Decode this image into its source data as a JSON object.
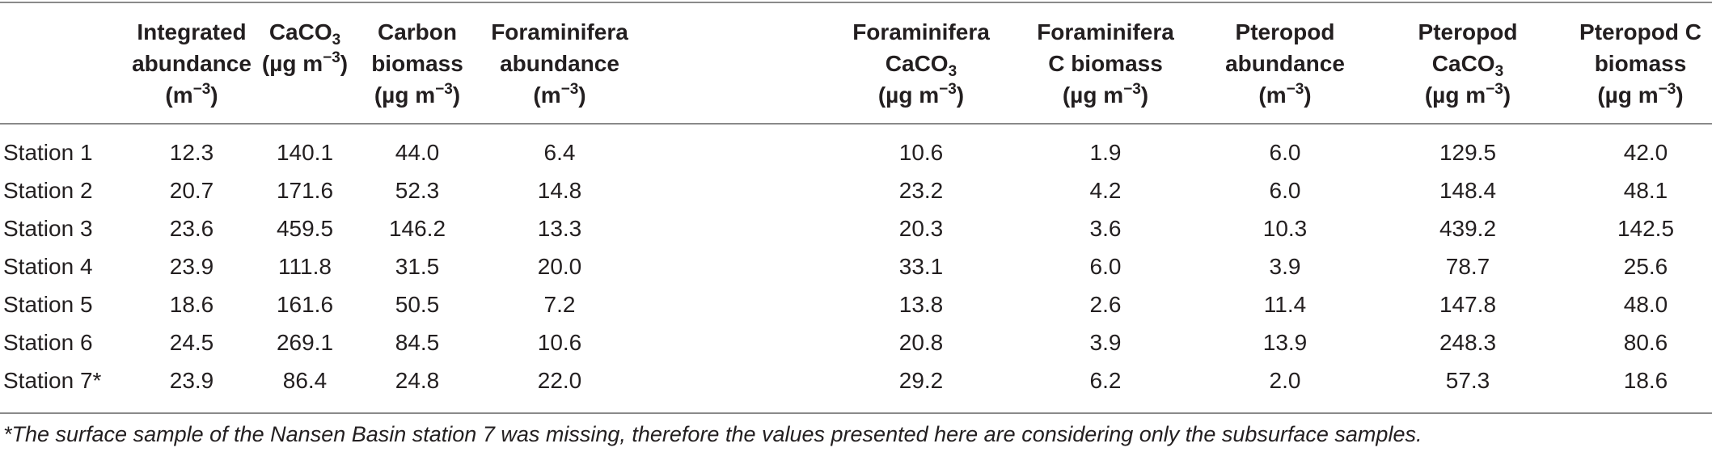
{
  "table": {
    "headers": [
      {
        "line1": "Integrated",
        "line2": "abundance",
        "line3_pre": "(m",
        "line3_sup": "−3",
        "line3_post": ")"
      },
      {
        "line1_pre": "CaCO",
        "line1_sub": "3",
        "line2_pre": "(µg m",
        "line2_sup": "−3",
        "line2_post": ")"
      },
      {
        "line1": "Carbon",
        "line2": "biomass",
        "line3_pre": "(µg m",
        "line3_sup": "−3",
        "line3_post": ")"
      },
      {
        "line1": "Foraminifera",
        "line2": "abundance",
        "line3_pre": "(m",
        "line3_sup": "−3",
        "line3_post": ")"
      },
      {
        "line1": "Foraminifera",
        "line2_pre": "CaCO",
        "line2_sub": "3",
        "line3_pre": "(µg m",
        "line3_sup": "−3",
        "line3_post": ")"
      },
      {
        "line1": "Foraminifera",
        "line2": "C biomass",
        "line3_pre": "(µg m",
        "line3_sup": "−3",
        "line3_post": ")"
      },
      {
        "line1": "Pteropod",
        "line2": "abundance",
        "line3_pre": "(m",
        "line3_sup": "−3",
        "line3_post": ")"
      },
      {
        "line1": "Pteropod",
        "line2_pre": "CaCO",
        "line2_sub": "3",
        "line3_pre": "(µg m",
        "line3_sup": "−3",
        "line3_post": ")"
      },
      {
        "line1": "Pteropod C",
        "line2": "biomass",
        "line3_pre": "(µg m",
        "line3_sup": "−3",
        "line3_post": ")"
      }
    ],
    "rows": [
      {
        "label": "Station 1",
        "values": [
          "12.3",
          "140.1",
          "44.0",
          "6.4",
          "10.6",
          "1.9",
          "6.0",
          "129.5",
          "42.0"
        ]
      },
      {
        "label": "Station 2",
        "values": [
          "20.7",
          "171.6",
          "52.3",
          "14.8",
          "23.2",
          "4.2",
          "6.0",
          "148.4",
          "48.1"
        ]
      },
      {
        "label": "Station 3",
        "values": [
          "23.6",
          "459.5",
          "146.2",
          "13.3",
          "20.3",
          "3.6",
          "10.3",
          "439.2",
          "142.5"
        ]
      },
      {
        "label": "Station 4",
        "values": [
          "23.9",
          "111.8",
          "31.5",
          "20.0",
          "33.1",
          "6.0",
          "3.9",
          "78.7",
          "25.6"
        ]
      },
      {
        "label": "Station 5",
        "values": [
          "18.6",
          "161.6",
          "50.5",
          "7.2",
          "13.8",
          "2.6",
          "11.4",
          "147.8",
          "48.0"
        ]
      },
      {
        "label": "Station 6",
        "values": [
          "24.5",
          "269.1",
          "84.5",
          "10.6",
          "20.8",
          "3.9",
          "13.9",
          "248.3",
          "80.6"
        ]
      },
      {
        "label": "Station 7*",
        "values": [
          "23.9",
          "86.4",
          "24.8",
          "22.0",
          "29.2",
          "6.2",
          "2.0",
          "57.3",
          "18.6"
        ]
      }
    ],
    "footnote": "*The surface sample of the Nansen Basin station 7 was missing, therefore the values presented here are considering only the subsurface samples."
  }
}
